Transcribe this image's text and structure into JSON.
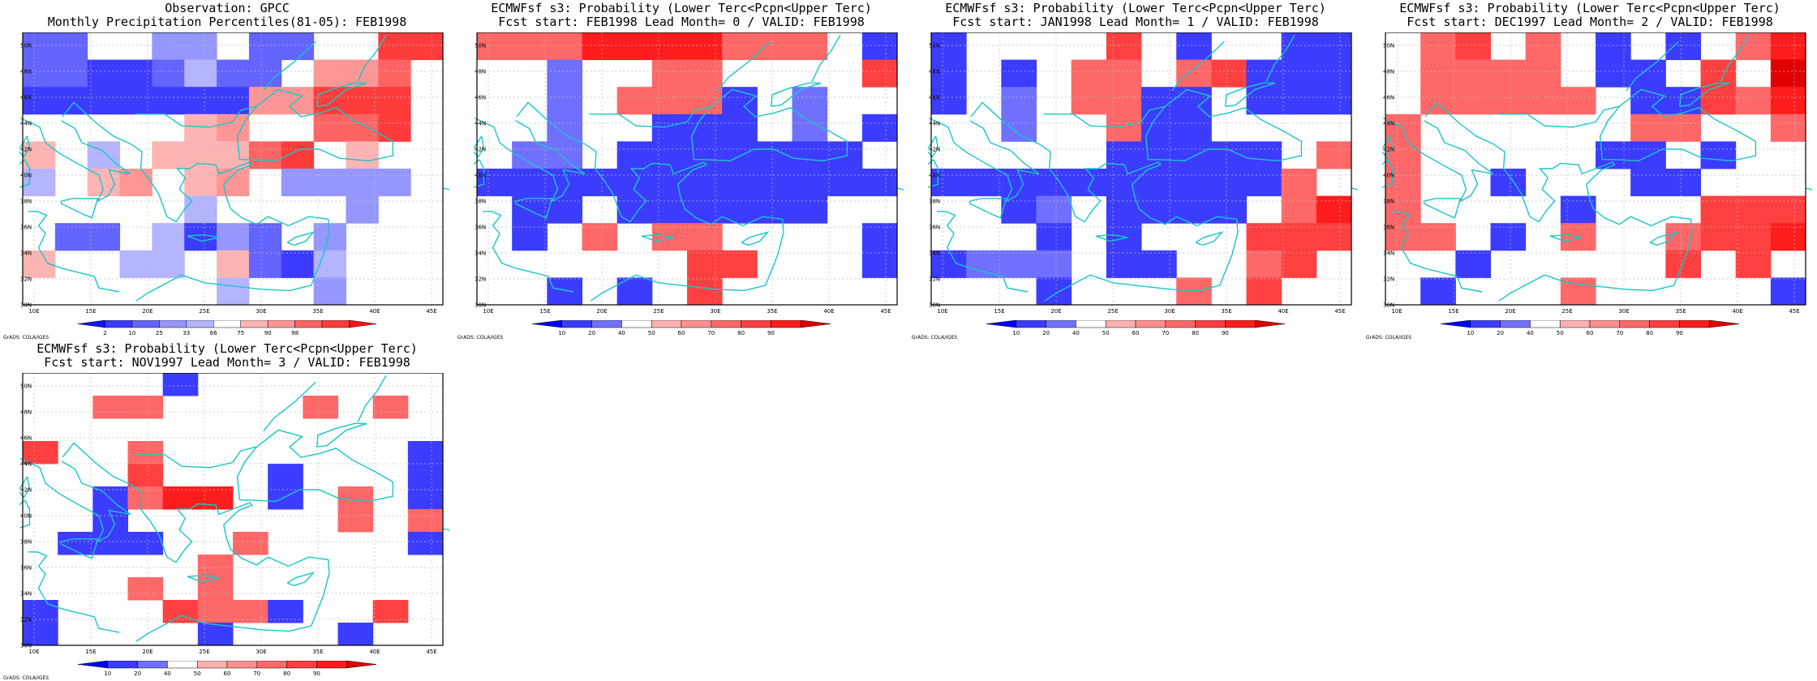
{
  "credit": "GrADS: COLA/IGES",
  "lat_labels": [
    "50N",
    "48N",
    "46N",
    "44N",
    "42N",
    "40N",
    "38N",
    "36N",
    "34N",
    "32N",
    "30N"
  ],
  "lon_labels": [
    "10E",
    "15E",
    "20E",
    "25E",
    "30E",
    "35E",
    "40E",
    "45E"
  ],
  "colors": {
    "coast": "#19c6c6",
    "grid": "#bdbdbd",
    "obs_palette": [
      "#1414ff",
      "#3c3cff",
      "#6464ff",
      "#9696ff",
      "#b4b4ff",
      "#ffffff",
      "#ffb4b4",
      "#ff9696",
      "#ff6464",
      "#ff3c3c",
      "#ff1414"
    ],
    "prob_palette": [
      "#0000ff",
      "#3c3cff",
      "#7070ff",
      "#ffffff",
      "#ffb0b0",
      "#ff9090",
      "#ff6868",
      "#ff4040",
      "#ff1c1c",
      "#e00000"
    ]
  },
  "panels": [
    {
      "title1": "Observation: GPCC",
      "title2": "Monthly Precipitation Percentiles(81-05): FEB1998",
      "colorbar_type": "obs",
      "colorbar_labels": [
        "2",
        "10",
        "25",
        "33",
        "66",
        "75",
        "90",
        "98"
      ],
      "grid": [
        "2255335225W99",
        "221124225778",
        "111111177999",
        "WW5WW67WW889",
        "6W456668956W",
        "4W67W67W3333",
        "WWWWW4WWWW3W",
        "W22W4132W3WW",
        "6WW44W6214WW",
        "WWWWWW4W53WW"
      ]
    },
    {
      "title1": "ECMWFsf s3: Probability (Lower Terc<Pcpn<Upper Terc)",
      "title2": "Fcst start: FEB1998  Lead Month= 0 / VALID: FEB1998",
      "colorbar_type": "prob",
      "colorbar_labels": [
        "10",
        "20",
        "40",
        "50",
        "60",
        "70",
        "80",
        "90"
      ],
      "grid": [
        "6668888666W1",
        "WW2WW66WWWW7",
        "WW2W6661W2WW",
        "WW2WW111W2W1",
        "W22W1111111W",
        "111111111111",
        "W11W111111WW",
        "W1W6W66WWWW1",
        "WWWWWW77WWW1",
        "WW1W1W7WWWWW"
      ]
    },
    {
      "title1": "ECMWFsf s3: Probability (Lower Terc<Pcpn<Upper Terc)",
      "title2": "Fcst start: JAN1998  Lead Month= 1 / VALID: FEB1998",
      "colorbar_type": "prob",
      "colorbar_labels": [
        "10",
        "20",
        "40",
        "50",
        "60",
        "70",
        "80",
        "90"
      ],
      "grid": [
        "1WWWW7W1WW11",
        "1W1W66W67111",
        "1W2W6611W111",
        "WW2WW611WWWW",
        "WWWWW11111W6",
        "11111111116W",
        "WW12W1111W68",
        "WWW1W1WWW777",
        "1222W11WW67W",
        "WWW1WWW6W7WW"
      ]
    },
    {
      "title1": "ECMWFsf s3: Probability (Lower Terc<Pcpn<Upper Terc)",
      "title2": "Fcst start: DEC1997  Lead Month= 2 / VALID: FEB1998",
      "colorbar_type": "prob",
      "colorbar_labels": [
        "10",
        "20",
        "40",
        "50",
        "60",
        "70",
        "80",
        "90"
      ],
      "grid": [
        "W67W6W1W1W68",
        "W6666W11W7W9",
        "W66666W11768",
        "6WWWWWW66WW6",
        "6WWWWW11W1WW",
        "6WW1WWW11WWW",
        "6WWWW1WWW777",
        "66W1W6WW6778",
        "WW1WWWWW7W7W",
        "W1WWW6WWWWW1"
      ]
    },
    {
      "title1": "ECMWFsf s3: Probability (Lower Terc<Pcpn<Upper Terc)",
      "title2": "Fcst start: NOV1997  Lead Month= 3 / VALID: FEB1998",
      "colorbar_type": "prob",
      "colorbar_labels": [
        "10",
        "20",
        "40",
        "50",
        "60",
        "70",
        "80",
        "90"
      ],
      "grid": [
        "WWWW1WWWWWWW",
        "WW66WWWW6W6W",
        "WWWWWWWWWWWW",
        "7WW6WWWWWWW1",
        "WWW7WWW1WWW1",
        "WW1688W1W6W1",
        "WW1WWWWWW6W6",
        "W111WW6WWWW1",
        "WWWWW6WWWWWW",
        "WWW6W6WWWWWW",
        "1WWW7661WW7W",
        "1WWWW1WWW1WW"
      ]
    }
  ]
}
